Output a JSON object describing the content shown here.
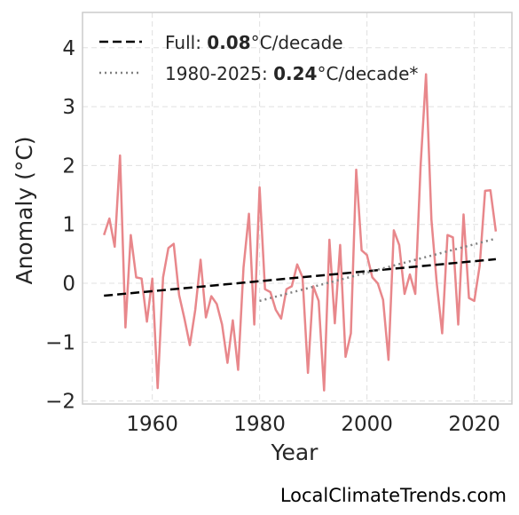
{
  "credit": "LocalClimateTrends.com",
  "legend": {
    "full": {
      "prefix": "Full: ",
      "value": "0.08",
      "suffix": "°C/decade"
    },
    "recent": {
      "prefix": "1980-2025: ",
      "value": "0.24",
      "suffix": "°C/decade*"
    }
  },
  "colors": {
    "anomaly": "#e8878b",
    "full_trend": "#000000",
    "recent_trend": "#808080",
    "grid": "#e0e0e0",
    "frame": "#cccccc"
  },
  "chart_data": {
    "type": "line",
    "xlabel": "Year",
    "ylabel": "Anomaly (°C)",
    "xlim": [
      1947,
      2027
    ],
    "ylim": [
      -2.05,
      4.6
    ],
    "xticks": [
      1960,
      1980,
      2000,
      2020
    ],
    "xtick_labels": [
      "1960",
      "1980",
      "2000",
      "2020"
    ],
    "yticks": [
      -2,
      -1,
      0,
      1,
      2,
      3,
      4
    ],
    "ytick_labels": [
      "−2",
      "−1",
      "0",
      "1",
      "2",
      "3",
      "4"
    ],
    "grid": true,
    "legend_position": "top-left",
    "series": [
      {
        "style": "solid",
        "x": [
          1951,
          1952,
          1953,
          1954,
          1955,
          1956,
          1957,
          1958,
          1959,
          1960,
          1961,
          1962,
          1963,
          1964,
          1965,
          1966,
          1967,
          1968,
          1969,
          1970,
          1971,
          1972,
          1973,
          1974,
          1975,
          1976,
          1977,
          1978,
          1979,
          1980,
          1981,
          1982,
          1983,
          1984,
          1985,
          1986,
          1987,
          1988,
          1989,
          1990,
          1991,
          1992,
          1993,
          1994,
          1995,
          1996,
          1997,
          1998,
          1999,
          2000,
          2001,
          2002,
          2003,
          2004,
          2005,
          2006,
          2007,
          2008,
          2009,
          2010,
          2011,
          2012,
          2013,
          2014,
          2015,
          2016,
          2017,
          2018,
          2019,
          2020,
          2021,
          2022,
          2023,
          2024
        ],
        "y": [
          0.82,
          1.1,
          0.62,
          2.17,
          -0.75,
          0.82,
          0.1,
          0.08,
          -0.65,
          0.08,
          -1.78,
          0.1,
          0.6,
          0.67,
          -0.2,
          -0.6,
          -1.05,
          -0.45,
          0.4,
          -0.58,
          -0.22,
          -0.35,
          -0.7,
          -1.35,
          -0.63,
          -1.47,
          0.27,
          1.18,
          -0.7,
          1.63,
          -0.1,
          -0.15,
          -0.45,
          -0.6,
          -0.1,
          -0.05,
          0.32,
          0.1,
          -1.52,
          -0.05,
          -0.3,
          -1.82,
          0.74,
          -0.68,
          0.65,
          -1.25,
          -0.85,
          1.93,
          0.56,
          0.48,
          0.1,
          0.0,
          -0.28,
          -1.3,
          0.9,
          0.65,
          -0.18,
          0.15,
          -0.18,
          2.0,
          3.55,
          1.08,
          0.0,
          -0.85,
          0.82,
          0.78,
          -0.7,
          1.17,
          -0.25,
          -0.3,
          0.3,
          1.57,
          1.58,
          0.88
        ]
      },
      {
        "style": "dashed",
        "x": [
          1951,
          2024
        ],
        "y": [
          -0.21,
          0.41
        ]
      },
      {
        "style": "dotted",
        "x": [
          1980,
          2024
        ],
        "y": [
          -0.3,
          0.76
        ]
      }
    ]
  }
}
